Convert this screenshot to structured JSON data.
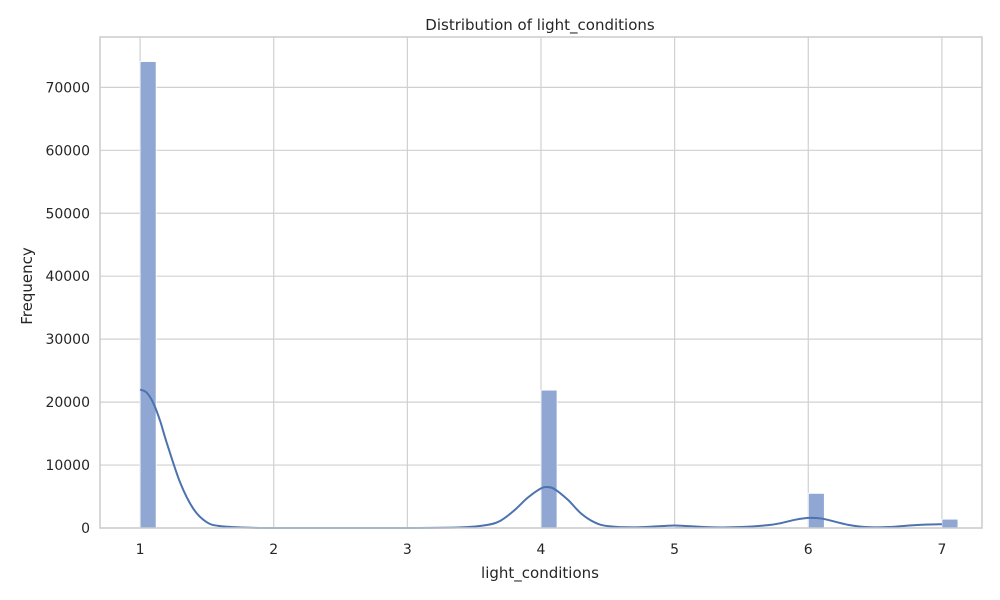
{
  "chart_data": {
    "type": "bar",
    "title": "Distribution of light_conditions",
    "xlabel": "light_conditions",
    "ylabel": "Frequency",
    "xlim": [
      0.7,
      7.3
    ],
    "ylim": [
      0,
      78000
    ],
    "x_ticks": [
      1,
      2,
      3,
      4,
      5,
      6,
      7
    ],
    "y_ticks": [
      0,
      10000,
      20000,
      30000,
      40000,
      50000,
      60000,
      70000
    ],
    "grid": true,
    "bin_width": 0.12,
    "bars": [
      {
        "x": 1,
        "value": 74100
      },
      {
        "x": 4,
        "value": 21900
      },
      {
        "x": 5,
        "value": 200
      },
      {
        "x": 6,
        "value": 5500
      },
      {
        "x": 7,
        "value": 1400
      }
    ],
    "kde": {
      "x": [
        1.0,
        1.05,
        1.1,
        1.15,
        1.2,
        1.3,
        1.4,
        1.5,
        1.6,
        1.8,
        2.0,
        2.5,
        3.0,
        3.4,
        3.6,
        3.7,
        3.8,
        3.9,
        4.0,
        4.05,
        4.1,
        4.2,
        4.3,
        4.4,
        4.5,
        4.7,
        4.9,
        5.0,
        5.1,
        5.3,
        5.5,
        5.7,
        5.8,
        5.9,
        6.0,
        6.1,
        6.2,
        6.3,
        6.4,
        6.5,
        6.6,
        6.7,
        6.8,
        6.9,
        7.0
      ],
      "y": [
        22000,
        21500,
        19800,
        17000,
        13500,
        7200,
        3000,
        900,
        300,
        50,
        0,
        0,
        0,
        100,
        500,
        1200,
        2800,
        4800,
        6300,
        6500,
        6200,
        4500,
        2300,
        900,
        300,
        100,
        300,
        400,
        300,
        100,
        150,
        450,
        800,
        1300,
        1600,
        1500,
        1000,
        500,
        200,
        100,
        150,
        300,
        450,
        550,
        600
      ]
    },
    "colors": {
      "bar_fill": "#8fa7d2",
      "bar_stroke": "#ffffff",
      "kde_line": "#4c72b0",
      "grid": "#d0d0d0",
      "frame": "#cccccc"
    }
  }
}
